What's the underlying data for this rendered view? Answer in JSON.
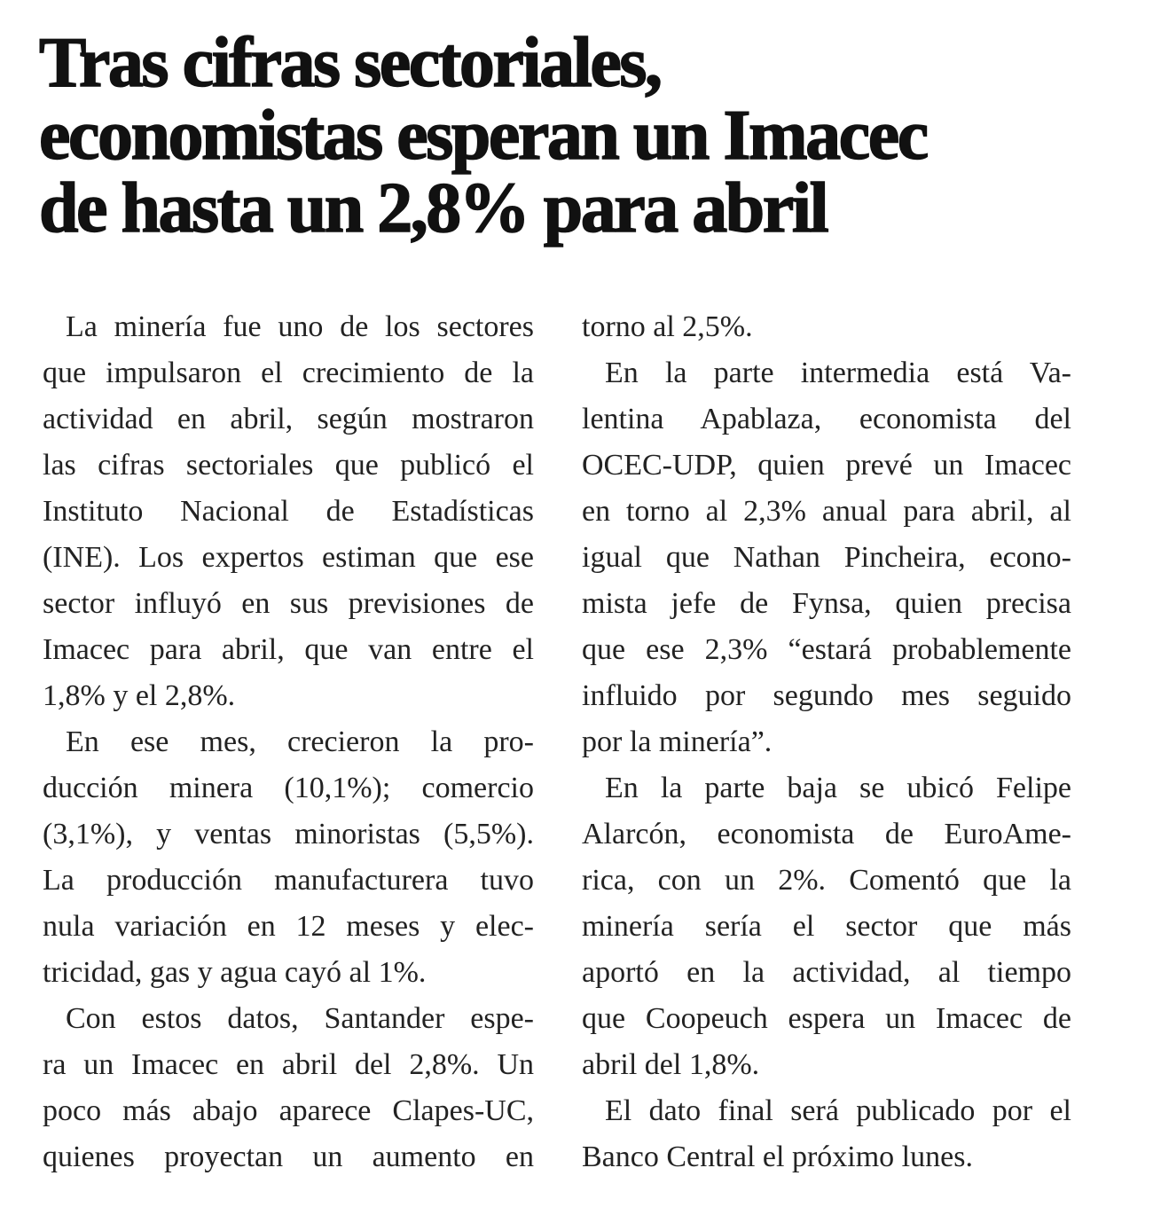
{
  "headline": [
    "Tras cifras sectoriales,",
    "economistas esperan un Imacec",
    "de hasta un 2,8% para abril"
  ],
  "left_column": [
    {
      "indent": true,
      "lines": [
        "La minería fue uno de los sectores",
        "que impulsaron el crecimiento de la",
        "actividad en abril, según mostraron",
        "las cifras sectoriales que publicó el",
        "Instituto Nacional de Estadísticas",
        "(INE). Los expertos estiman que ese",
        "sector influyó en sus previsiones de",
        "Imacec para abril, que van entre el",
        "1,8% y el 2,8%."
      ]
    },
    {
      "indent": true,
      "lines": [
        "En ese mes, crecieron la pro-",
        "ducción minera (10,1%); comercio",
        "(3,1%), y ventas minoristas (5,5%).",
        "La producción manufacturera tuvo",
        "nula variación en 12 meses y elec-",
        "tricidad, gas y agua cayó al 1%."
      ]
    },
    {
      "indent": true,
      "continues": true,
      "lines": [
        "Con estos datos, Santander espe-",
        "ra un Imacec en abril del 2,8%. Un",
        "poco más abajo aparece Clapes-UC,",
        "quienes proyectan un aumento en"
      ]
    }
  ],
  "right_column": [
    {
      "indent": false,
      "lines": [
        "torno al 2,5%."
      ]
    },
    {
      "indent": true,
      "lines": [
        "En la parte intermedia está Va-",
        "lentina Apablaza, economista del",
        "OCEC-UDP, quien prevé un Imacec",
        "en torno al 2,3% anual para abril, al",
        "igual que Nathan Pincheira, econo-",
        "mista jefe de Fynsa, quien precisa",
        "que ese 2,3% “estará probablemente",
        "influido por segundo mes seguido",
        "por la minería”."
      ]
    },
    {
      "indent": true,
      "lines": [
        "En la parte baja se ubicó Felipe",
        "Alarcón, economista de EuroAme-",
        "rica, con un 2%. Comentó que la",
        "minería sería el sector que más",
        "aportó en la actividad, al tiempo",
        "que Coopeuch espera un Imacec de",
        "abril del 1,8%."
      ]
    },
    {
      "indent": true,
      "lines": [
        "El dato final será publicado por el",
        "Banco Central el próximo lunes."
      ]
    }
  ]
}
